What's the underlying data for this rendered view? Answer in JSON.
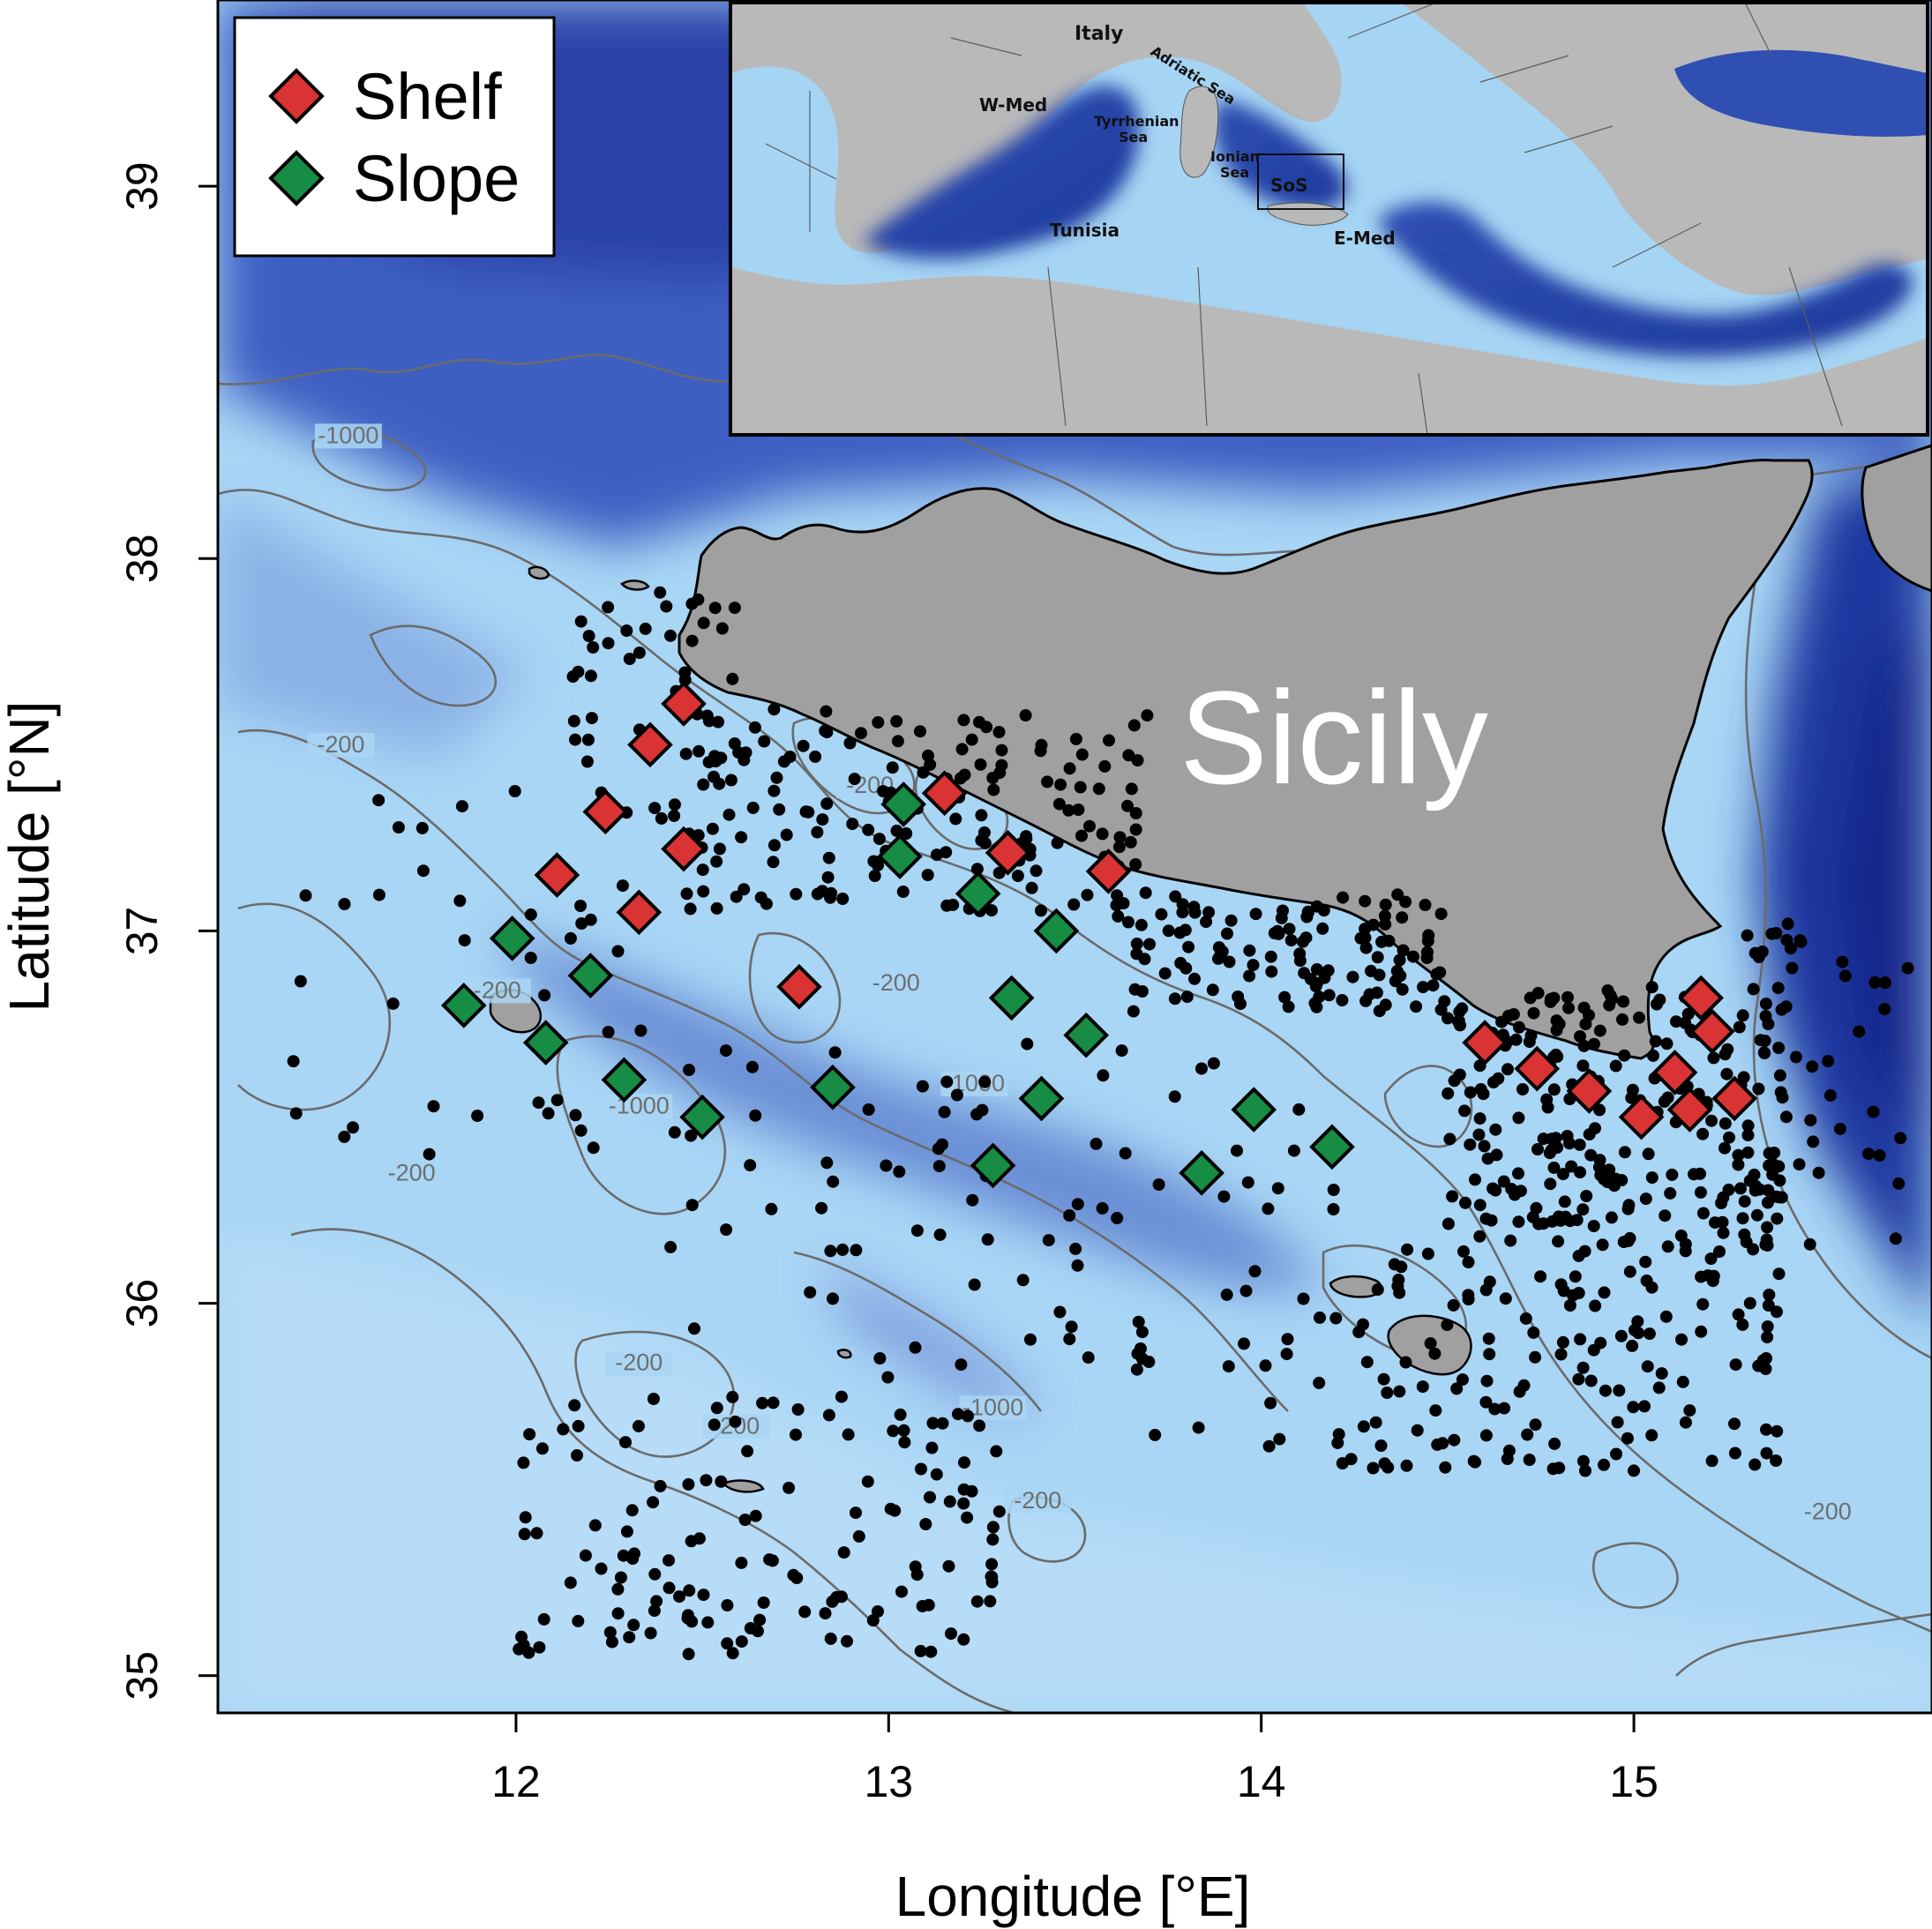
{
  "axes": {
    "xlabel": "Longitude [°E]",
    "ylabel": "Latitude [°N]",
    "xlim": [
      11.2,
      15.8
    ],
    "ylim": [
      34.9,
      39.5
    ],
    "xticks": [
      "12",
      "13",
      "14",
      "15"
    ],
    "yticks": [
      "35",
      "36",
      "37",
      "38",
      "39"
    ]
  },
  "legend": {
    "position": "top-left",
    "items": [
      {
        "label": "Shelf",
        "color": "#d93333"
      },
      {
        "label": "Slope",
        "color": "#168c45"
      }
    ]
  },
  "land_label": "Sicily",
  "contour_labels": [
    {
      "text": "-1000",
      "lon": 11.55,
      "lat": 38.31
    },
    {
      "text": "-200",
      "lon": 11.53,
      "lat": 37.48
    },
    {
      "text": "-200",
      "lon": 12.95,
      "lat": 37.37
    },
    {
      "text": "-200",
      "lon": 13.02,
      "lat": 36.84
    },
    {
      "text": "-200",
      "lon": 11.95,
      "lat": 36.82
    },
    {
      "text": "-1000",
      "lon": 13.23,
      "lat": 36.57
    },
    {
      "text": "-1000",
      "lon": 12.33,
      "lat": 36.51
    },
    {
      "text": "-200",
      "lon": 11.72,
      "lat": 36.33
    },
    {
      "text": "-200",
      "lon": 12.33,
      "lat": 35.82
    },
    {
      "text": "-200",
      "lon": 12.59,
      "lat": 35.65
    },
    {
      "text": "-1000",
      "lon": 13.28,
      "lat": 35.7
    },
    {
      "text": "-200",
      "lon": 13.4,
      "lat": 35.45
    },
    {
      "text": "-200",
      "lon": 15.52,
      "lat": 35.42
    }
  ],
  "inset": {
    "labels": [
      {
        "text": "Italy"
      },
      {
        "text": "Adriatic Sea"
      },
      {
        "text": "W-Med"
      },
      {
        "text": "Tyrrhenian"
      },
      {
        "text": "Sea"
      },
      {
        "text": "Ionian"
      },
      {
        "text": "Sea"
      },
      {
        "text": "SoS"
      },
      {
        "text": "Tunisia"
      },
      {
        "text": "E-Med"
      }
    ]
  },
  "chart_data": {
    "type": "scatter",
    "series": [
      {
        "name": "Shelf",
        "color": "#d93333",
        "marker": "diamond",
        "points": [
          [
            12.45,
            37.61
          ],
          [
            12.36,
            37.5
          ],
          [
            12.24,
            37.32
          ],
          [
            12.45,
            37.22
          ],
          [
            12.11,
            37.15
          ],
          [
            12.33,
            37.05
          ],
          [
            13.15,
            37.37
          ],
          [
            13.32,
            37.21
          ],
          [
            13.59,
            37.16
          ],
          [
            12.76,
            36.85
          ],
          [
            14.6,
            36.7
          ],
          [
            14.74,
            36.63
          ],
          [
            14.88,
            36.57
          ],
          [
            15.02,
            36.5
          ],
          [
            15.11,
            36.62
          ],
          [
            15.15,
            36.52
          ],
          [
            15.18,
            36.82
          ],
          [
            15.21,
            36.73
          ],
          [
            15.27,
            36.55
          ]
        ]
      },
      {
        "name": "Slope",
        "color": "#168c45",
        "marker": "diamond",
        "points": [
          [
            13.04,
            37.34
          ],
          [
            13.03,
            37.2
          ],
          [
            13.24,
            37.1
          ],
          [
            13.45,
            37.0
          ],
          [
            11.99,
            36.98
          ],
          [
            12.2,
            36.88
          ],
          [
            11.86,
            36.8
          ],
          [
            12.08,
            36.7
          ],
          [
            12.29,
            36.6
          ],
          [
            12.5,
            36.5
          ],
          [
            12.85,
            36.58
          ],
          [
            13.33,
            36.82
          ],
          [
            13.53,
            36.72
          ],
          [
            13.41,
            36.55
          ],
          [
            13.28,
            36.37
          ],
          [
            13.98,
            36.52
          ],
          [
            13.84,
            36.35
          ],
          [
            14.19,
            36.42
          ]
        ]
      },
      {
        "name": "",
        "color": "#000000",
        "marker": "dot",
        "points": []
      }
    ]
  }
}
